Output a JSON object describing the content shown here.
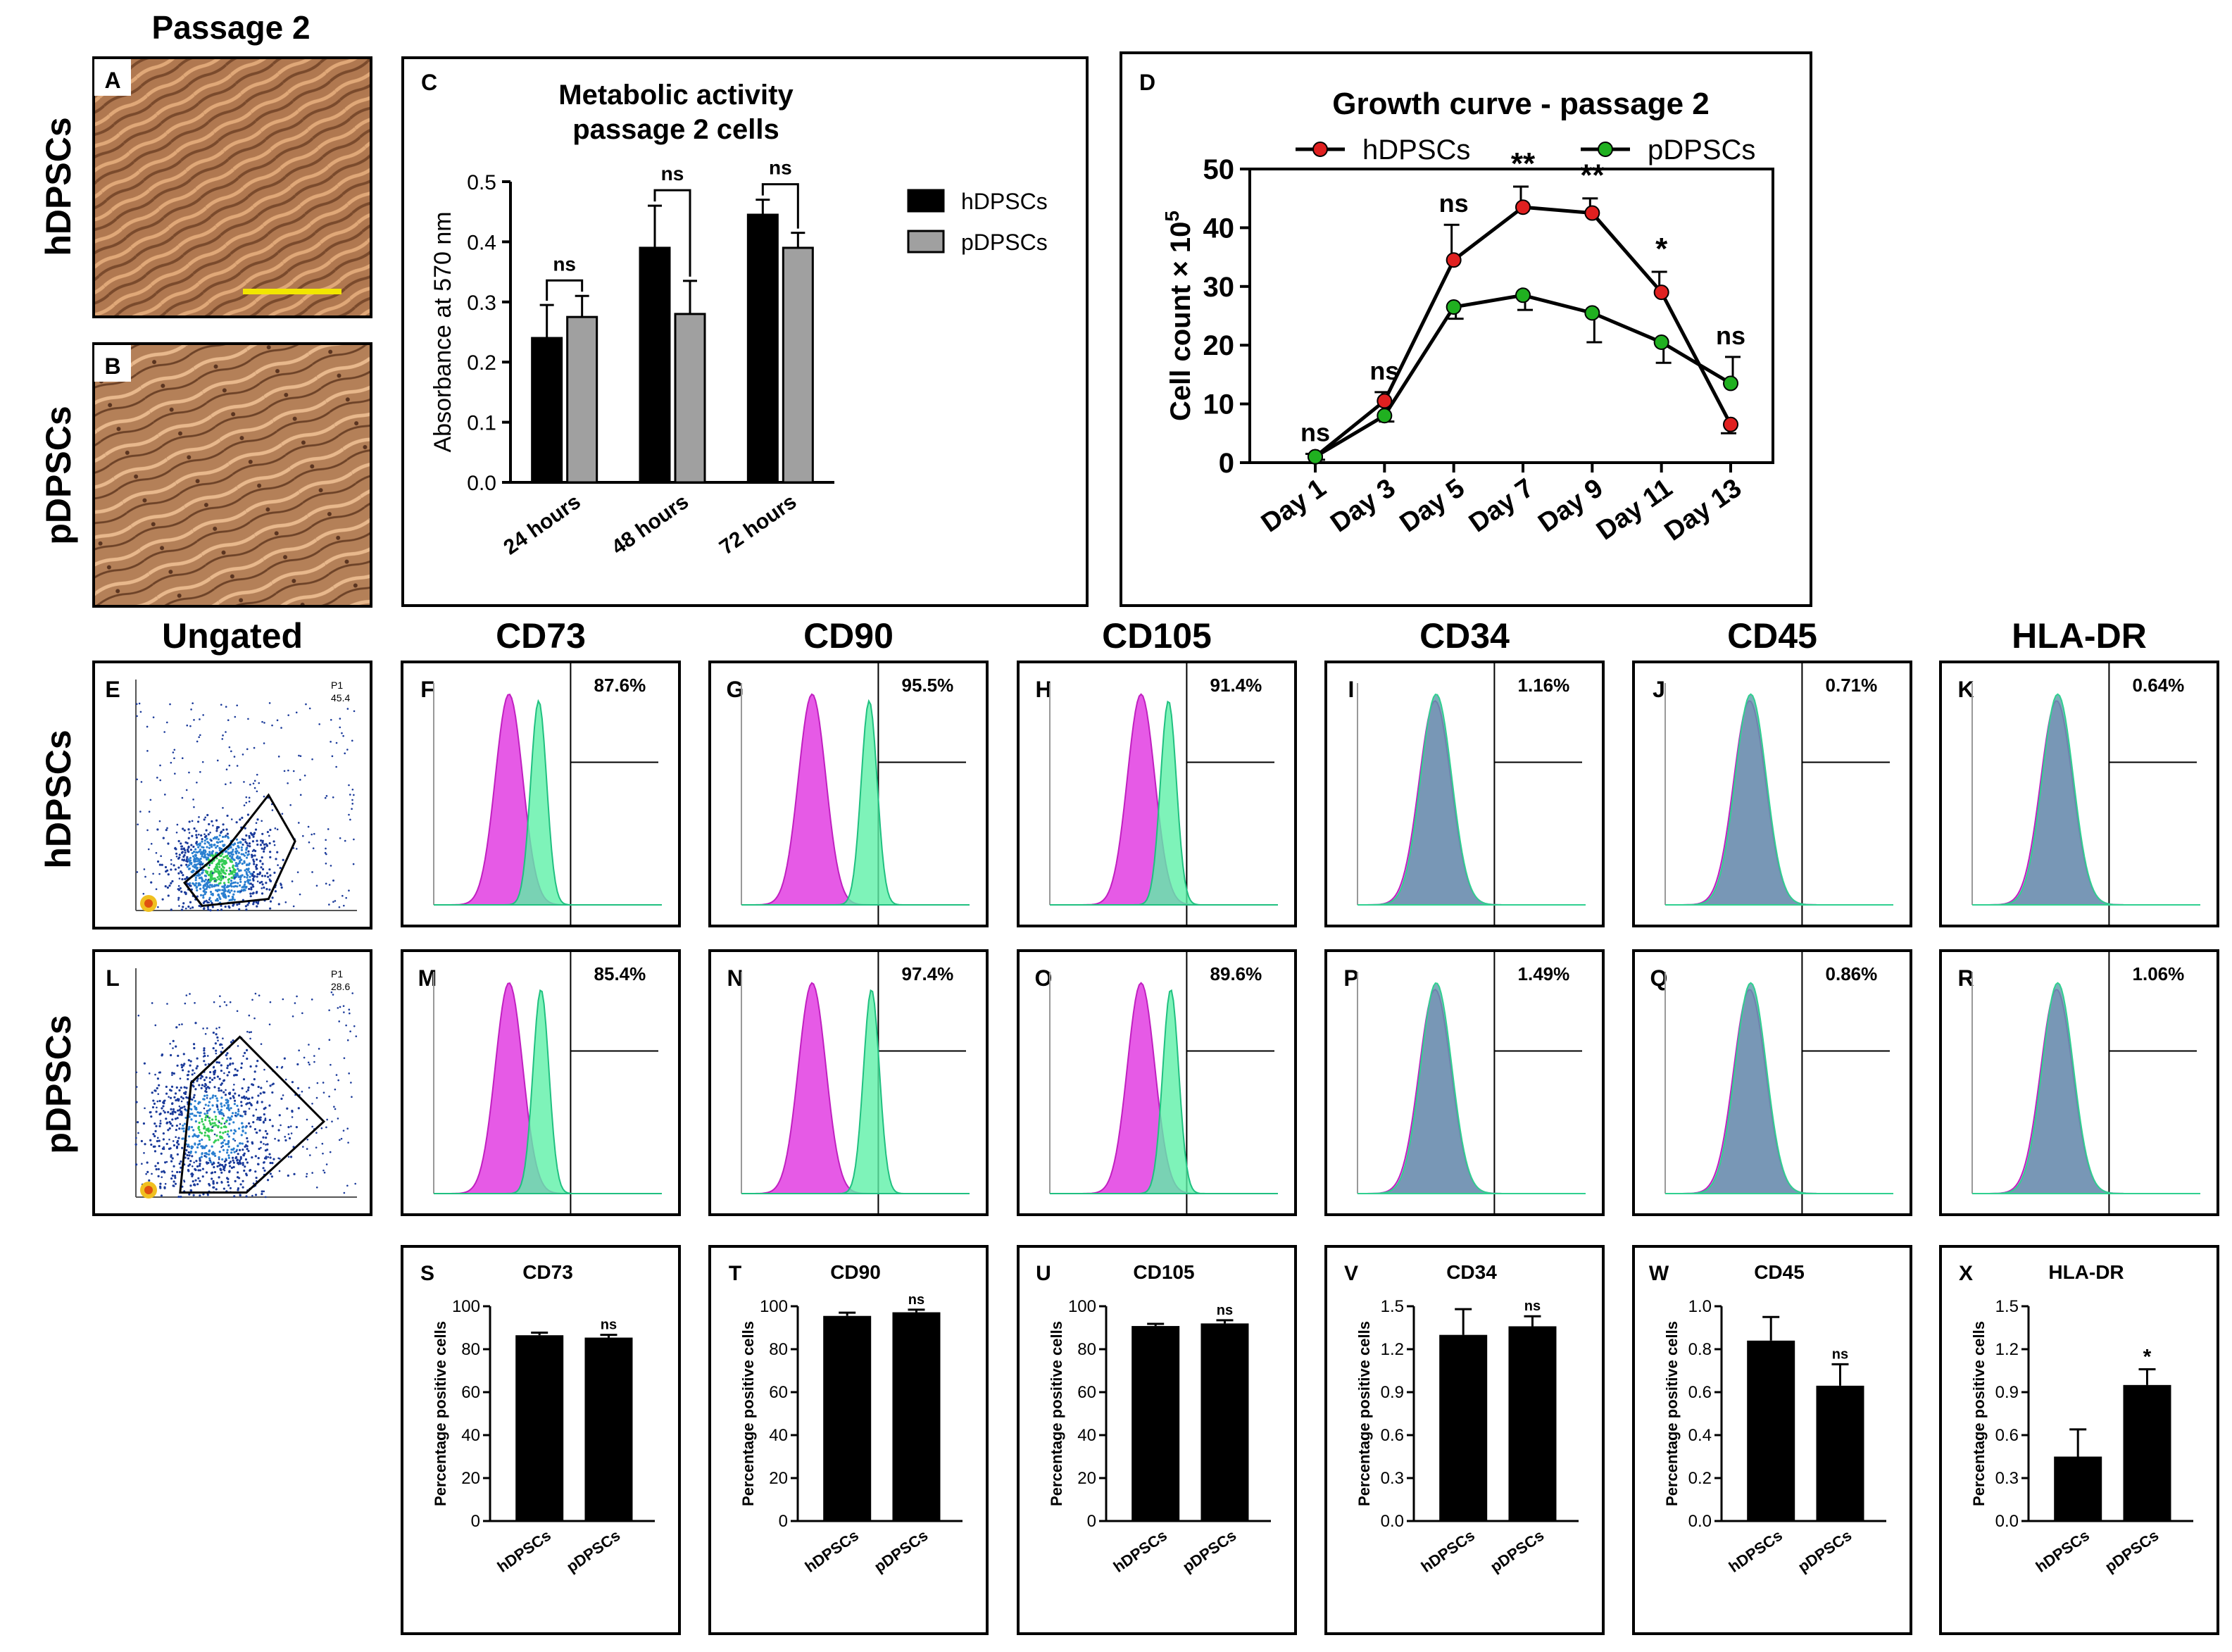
{
  "colors": {
    "hdpsc_bar": "#000000",
    "pdpsc_bar": "#a0a0a0",
    "hdpsc_line": "#e02020",
    "pdpsc_line": "#20b020",
    "isotype": "#e23de2",
    "marker": "#5ef0a8",
    "overlap": "#5a9aa8",
    "scalebar": "#f2e600",
    "micro_bg": "#b07850"
  },
  "labels": {
    "passage": "Passage 2",
    "row_hdpsc": "hDPSCs",
    "row_pdpsc": "pDPSCs",
    "col_ungated": "Ungated",
    "col_cd73": "CD73",
    "col_cd90": "CD90",
    "col_cd105": "CD105",
    "col_cd34": "CD34",
    "col_cd45": "CD45",
    "col_hladr": "HLA-DR",
    "gate_label": "P1",
    "gate_pct_hdpsc": "45.4",
    "gate_pct_pdpsc": "28.6"
  },
  "panel_letters": {
    "A": "A",
    "B": "B",
    "C": "C",
    "D": "D",
    "E": "E",
    "F": "F",
    "G": "G",
    "H": "H",
    "I": "I",
    "J": "J",
    "K": "K",
    "L": "L",
    "M": "M",
    "N": "N",
    "O": "O",
    "P": "P",
    "Q": "Q",
    "R": "R",
    "S": "S",
    "T": "T",
    "U": "U",
    "V": "V",
    "W": "W",
    "X": "X"
  },
  "flow_percentages": {
    "hdpsc": [
      "87.6%",
      "95.5%",
      "91.4%",
      "1.16%",
      "0.71%",
      "0.64%"
    ],
    "pdpsc": [
      "85.4%",
      "97.4%",
      "89.6%",
      "1.49%",
      "0.86%",
      "1.06%"
    ]
  },
  "chart_data": [
    {
      "id": "C",
      "type": "bar",
      "title": "Metabolic activity passage 2 cells",
      "title_lines": [
        "Metabolic activity",
        "passage 2 cells"
      ],
      "ylabel": "Absorbance at 570 nm",
      "xlabel": "",
      "ylim": [
        0,
        0.5
      ],
      "yticks": [
        "0.0",
        "0.1",
        "0.2",
        "0.3",
        "0.4",
        "0.5"
      ],
      "categories": [
        "24 hours",
        "48 hours",
        "72 hours"
      ],
      "series": [
        {
          "name": "hDPSCs",
          "values": [
            0.24,
            0.39,
            0.445
          ],
          "errors": [
            0.055,
            0.07,
            0.025
          ]
        },
        {
          "name": "pDPSCs",
          "values": [
            0.275,
            0.28,
            0.39
          ],
          "errors": [
            0.035,
            0.055,
            0.025
          ]
        }
      ],
      "annotations": [
        "ns",
        "ns",
        "ns"
      ],
      "legend": "right"
    },
    {
      "id": "D",
      "type": "line",
      "title": "Growth curve - passage 2",
      "ylabel": "Cell count × 10",
      "ylabel_exp": "5",
      "ylim": [
        0,
        50
      ],
      "yticks": [
        "0",
        "10",
        "20",
        "30",
        "40",
        "50"
      ],
      "categories": [
        "Day 1",
        "Day 3",
        "Day 5",
        "Day 7",
        "Day 9",
        "Day 11",
        "Day 13"
      ],
      "series": [
        {
          "name": "hDPSCs",
          "values": [
            1,
            10.5,
            34.5,
            43.5,
            42.5,
            29,
            6.5
          ],
          "errors": [
            0.5,
            1.5,
            6,
            3.5,
            2.5,
            3.5,
            1.5
          ]
        },
        {
          "name": "pDPSCs",
          "values": [
            1,
            8,
            26.5,
            28.5,
            25.5,
            20.5,
            13.5
          ],
          "errors": [
            0.5,
            1,
            2,
            2.5,
            5,
            3.5,
            4.5
          ]
        }
      ],
      "annotations": [
        "ns",
        "ns",
        "ns",
        "**",
        "**",
        "*",
        "ns"
      ],
      "legend": "top"
    },
    {
      "id": "S",
      "type": "bar",
      "title": "CD73",
      "ylabel": "Percentage positive cells",
      "ylim": [
        0,
        100
      ],
      "yticks": [
        "0",
        "20",
        "40",
        "60",
        "80",
        "100"
      ],
      "categories": [
        "hDPSCs",
        "pDPSCs"
      ],
      "values": [
        86.5,
        85.4
      ],
      "errors": [
        1.2,
        1.3
      ],
      "annotation": "ns"
    },
    {
      "id": "T",
      "type": "bar",
      "title": "CD90",
      "ylabel": "Percentage positive cells",
      "ylim": [
        0,
        100
      ],
      "yticks": [
        "0",
        "20",
        "40",
        "60",
        "80",
        "100"
      ],
      "categories": [
        "hDPSCs",
        "pDPSCs"
      ],
      "values": [
        95.5,
        97.2
      ],
      "errors": [
        1.5,
        1.2
      ],
      "annotation": "ns"
    },
    {
      "id": "U",
      "type": "bar",
      "title": "CD105",
      "ylabel": "Percentage positive cells",
      "ylim": [
        0,
        100
      ],
      "yticks": [
        "0",
        "20",
        "40",
        "60",
        "80",
        "100"
      ],
      "categories": [
        "hDPSCs",
        "pDPSCs"
      ],
      "values": [
        90.8,
        92
      ],
      "errors": [
        1,
        1.5
      ],
      "annotation": "ns"
    },
    {
      "id": "V",
      "type": "bar",
      "title": "CD34",
      "ylabel": "Percentage positive cells",
      "ylim": [
        0,
        1.5
      ],
      "yticks": [
        "0.0",
        "0.3",
        "0.6",
        "0.9",
        "1.2",
        "1.5"
      ],
      "categories": [
        "hDPSCs",
        "pDPSCs"
      ],
      "values": [
        1.3,
        1.36
      ],
      "errors": [
        0.18,
        0.07
      ],
      "annotation": "ns"
    },
    {
      "id": "W",
      "type": "bar",
      "title": "CD45",
      "ylabel": "Percentage positive cells",
      "ylim": [
        0,
        1.0
      ],
      "yticks": [
        "0.0",
        "0.2",
        "0.4",
        "0.6",
        "0.8",
        "1.0"
      ],
      "categories": [
        "hDPSCs",
        "pDPSCs"
      ],
      "values": [
        0.84,
        0.63
      ],
      "errors": [
        0.11,
        0.1
      ],
      "annotation": "ns"
    },
    {
      "id": "X",
      "type": "bar",
      "title": "HLA-DR",
      "ylabel": "Percentage positive cells",
      "ylim": [
        0,
        1.5
      ],
      "yticks": [
        "0.0",
        "0.3",
        "0.6",
        "0.9",
        "1.2",
        "1.5"
      ],
      "categories": [
        "hDPSCs",
        "pDPSCs"
      ],
      "values": [
        0.45,
        0.95
      ],
      "errors": [
        0.19,
        0.11
      ],
      "annotation": "*"
    }
  ]
}
